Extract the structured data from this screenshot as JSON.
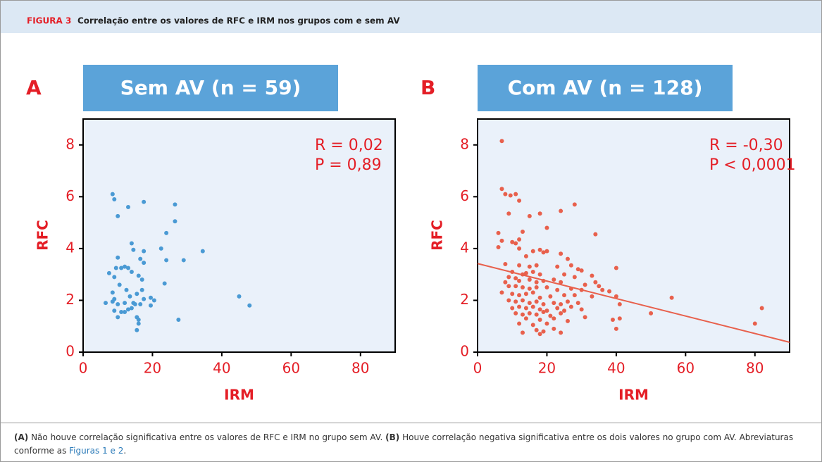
{
  "header": {
    "figure_label": "FIGURA 3",
    "title": "Correlação entre os valores de RFC e IRM nos grupos com e sem AV"
  },
  "chart_data": [
    {
      "type": "scatter",
      "panel_label": "A",
      "title": "Sem AV (n = 59)",
      "xlabel": "IRM",
      "ylabel": "RFC",
      "annotations": [
        "R = 0,02",
        "P = 0,89"
      ],
      "xlim": [
        0,
        90
      ],
      "xticks": [
        0,
        20,
        40,
        60,
        80
      ],
      "ylim": [
        0,
        9
      ],
      "yticks": [
        0,
        2,
        4,
        6,
        8
      ],
      "series": [
        {
          "color": "#4a9ad4",
          "x": [
            8.5,
            9,
            13,
            17.5,
            26.5,
            10,
            26.5,
            24,
            14,
            14.5,
            17.5,
            22.5,
            34.5,
            10,
            16.5,
            24,
            29,
            17.5,
            9.5,
            11,
            12,
            13,
            14,
            7.5,
            16,
            9,
            17,
            10.5,
            23.5,
            12.5,
            17,
            8.5,
            15.5,
            13.5,
            19.5,
            20.5,
            9,
            8.5,
            6.5,
            12,
            14.5,
            15,
            17.5,
            16.5,
            19.5,
            10,
            14,
            13,
            11,
            12,
            9,
            10,
            15.5,
            16,
            16,
            15.5,
            27.5,
            45,
            48
          ],
          "values": [
            6.1,
            5.9,
            5.6,
            5.8,
            5.7,
            5.25,
            5.05,
            4.6,
            4.2,
            3.95,
            3.9,
            4.0,
            3.9,
            3.65,
            3.6,
            3.55,
            3.55,
            3.45,
            3.25,
            3.25,
            3.3,
            3.25,
            3.1,
            3.05,
            2.95,
            2.9,
            2.8,
            2.6,
            2.65,
            2.4,
            2.4,
            2.3,
            2.25,
            2.15,
            2.1,
            2.0,
            2.05,
            1.95,
            1.9,
            1.9,
            1.9,
            1.85,
            2.05,
            1.85,
            1.8,
            1.85,
            1.7,
            1.65,
            1.55,
            1.55,
            1.6,
            1.35,
            1.35,
            1.25,
            1.1,
            0.85,
            1.25,
            2.15,
            1.8
          ]
        }
      ]
    },
    {
      "type": "scatter",
      "panel_label": "B",
      "title": "Com AV (n = 128)",
      "xlabel": "IRM",
      "ylabel": "RFC",
      "annotations": [
        "R = -0,30",
        "P < 0,0001"
      ],
      "xlim": [
        0,
        90
      ],
      "xticks": [
        0,
        20,
        40,
        60,
        80
      ],
      "ylim": [
        0,
        9
      ],
      "yticks": [
        0,
        2,
        4,
        6,
        8
      ],
      "series": [
        {
          "color": "#e8604c",
          "x": [
            7,
            7,
            8,
            9.5,
            11,
            12,
            9,
            15,
            18,
            24,
            28,
            20,
            6,
            13,
            12,
            7,
            10,
            11,
            12,
            34,
            6,
            16,
            18,
            20,
            19,
            24,
            14,
            26,
            17,
            8,
            12,
            15,
            23,
            29,
            30,
            40,
            27,
            10,
            13,
            14,
            16,
            18,
            25,
            28,
            33,
            9,
            11,
            12,
            15,
            17,
            19,
            22,
            24,
            31,
            34,
            35,
            8,
            9,
            11,
            13,
            15,
            17,
            20,
            23,
            27,
            30,
            36,
            38,
            7,
            10,
            12,
            14,
            16,
            18,
            21,
            25,
            28,
            33,
            40,
            56,
            9,
            11,
            13,
            15,
            17,
            19,
            22,
            24,
            26,
            29,
            41,
            10,
            12,
            14,
            16,
            18,
            20,
            23,
            25,
            27,
            30,
            82,
            11,
            13,
            15,
            17,
            19,
            21,
            24,
            50,
            14,
            18,
            22,
            26,
            31,
            39,
            41,
            12,
            16,
            20,
            80,
            17,
            13,
            19,
            22,
            24,
            40,
            18
          ],
          "values": [
            8.15,
            6.3,
            6.1,
            6.05,
            6.1,
            5.85,
            5.35,
            5.25,
            5.35,
            5.45,
            5.7,
            4.8,
            4.6,
            4.65,
            4.35,
            4.3,
            4.25,
            4.2,
            4.0,
            4.55,
            4.05,
            3.9,
            3.95,
            3.9,
            3.85,
            3.8,
            3.7,
            3.6,
            3.35,
            3.4,
            3.35,
            3.3,
            3.3,
            3.2,
            3.15,
            3.25,
            3.35,
            3.1,
            3.0,
            3.05,
            3.1,
            3.0,
            3.0,
            2.9,
            2.95,
            2.9,
            2.85,
            2.75,
            2.8,
            2.7,
            2.75,
            2.8,
            2.7,
            2.6,
            2.7,
            2.55,
            2.7,
            2.55,
            2.55,
            2.5,
            2.45,
            2.5,
            2.5,
            2.4,
            2.45,
            2.4,
            2.4,
            2.35,
            2.3,
            2.25,
            2.2,
            2.25,
            2.3,
            2.1,
            2.15,
            2.2,
            2.2,
            2.15,
            2.15,
            2.1,
            2.0,
            1.95,
            2.0,
            1.9,
            1.95,
            1.85,
            1.9,
            1.85,
            1.95,
            1.9,
            1.85,
            1.7,
            1.75,
            1.7,
            1.75,
            1.65,
            1.6,
            1.7,
            1.6,
            1.75,
            1.65,
            1.7,
            1.5,
            1.45,
            1.5,
            1.45,
            1.55,
            1.4,
            1.5,
            1.5,
            1.3,
            1.25,
            1.3,
            1.2,
            1.35,
            1.25,
            1.3,
            1.1,
            1.05,
            1.1,
            1.1,
            0.85,
            0.75,
            0.8,
            0.9,
            0.75,
            0.9,
            0.7
          ]
        }
      ],
      "trendline": {
        "color": "#e8604c",
        "x": [
          0,
          90
        ],
        "values": [
          3.42,
          0.38
        ]
      }
    }
  ],
  "caption": [
    "(A)",
    " Não houve correlação significativa entre os valores de RFC e IRM no grupo sem AV. ",
    "(B)",
    " Houve correlação negativa significativa entre os dois valores no grupo com AV. Abreviaturas conforme as ",
    "Figuras 1 e 2",
    "."
  ]
}
